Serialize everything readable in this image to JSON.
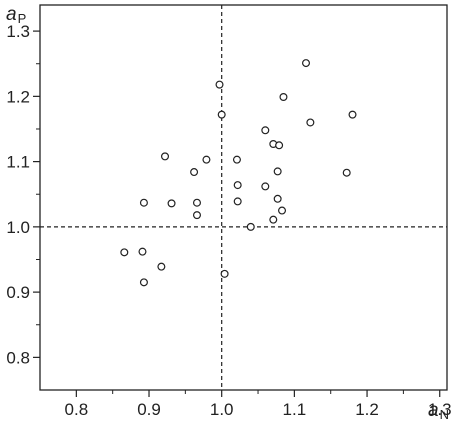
{
  "chart_data": {
    "type": "scatter",
    "title": "",
    "xlabel": {
      "main": "a",
      "sub": "N"
    },
    "ylabel": {
      "main": "a",
      "sub": "P"
    },
    "xlim": [
      0.75,
      1.31
    ],
    "ylim": [
      0.75,
      1.34
    ],
    "x_ticks": [
      0.8,
      0.9,
      1.0,
      1.1,
      1.2,
      1.3
    ],
    "x_tick_labels": [
      "0.8",
      "0.9",
      "1.0",
      "1.1",
      "1.2",
      "1.3"
    ],
    "y_ticks": [
      0.8,
      0.9,
      1.0,
      1.1,
      1.2,
      1.3
    ],
    "y_tick_labels": [
      "0.8",
      "0.9",
      "1.0",
      "1.1",
      "1.2",
      "1.3"
    ],
    "reference_lines": {
      "x": 1.0,
      "y": 1.0,
      "style": "dashed"
    },
    "grid": false,
    "legend": "none",
    "marker": "open-circle",
    "color": "#222222",
    "points": [
      [
        0.997,
        1.218
      ],
      [
        1.0,
        1.172
      ],
      [
        1.116,
        1.251
      ],
      [
        1.085,
        1.199
      ],
      [
        1.122,
        1.16
      ],
      [
        1.18,
        1.172
      ],
      [
        1.06,
        1.148
      ],
      [
        1.071,
        1.127
      ],
      [
        1.079,
        1.125
      ],
      [
        0.922,
        1.108
      ],
      [
        0.979,
        1.103
      ],
      [
        1.021,
        1.103
      ],
      [
        0.962,
        1.084
      ],
      [
        1.077,
        1.085
      ],
      [
        1.172,
        1.083
      ],
      [
        1.022,
        1.064
      ],
      [
        1.06,
        1.062
      ],
      [
        0.893,
        1.037
      ],
      [
        0.931,
        1.036
      ],
      [
        0.966,
        1.037
      ],
      [
        1.022,
        1.039
      ],
      [
        1.077,
        1.043
      ],
      [
        1.083,
        1.025
      ],
      [
        0.966,
        1.018
      ],
      [
        1.071,
        1.011
      ],
      [
        1.04,
        1.0
      ],
      [
        0.866,
        0.961
      ],
      [
        0.891,
        0.962
      ],
      [
        0.917,
        0.939
      ],
      [
        0.893,
        0.915
      ],
      [
        1.004,
        0.928
      ]
    ]
  }
}
